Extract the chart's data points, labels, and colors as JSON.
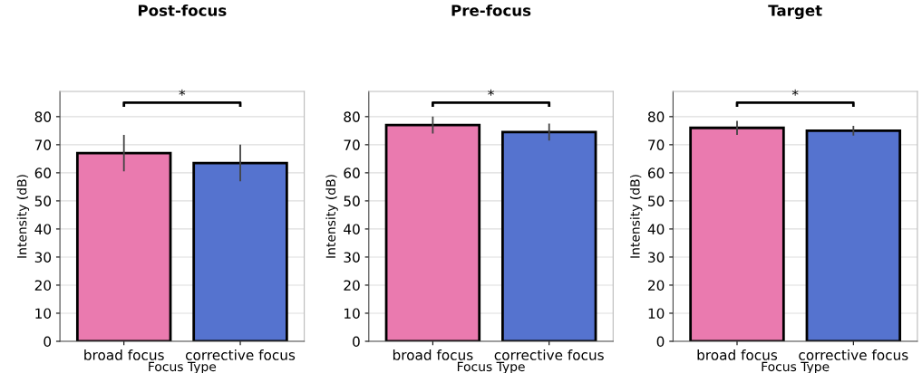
{
  "chart_data": [
    {
      "type": "bar",
      "title": "Post-focus",
      "xlabel": "Focus Type",
      "ylabel": "Intensity (dB)",
      "categories": [
        "broad focus",
        "corrective focus"
      ],
      "values": [
        67,
        63.5
      ],
      "colors": [
        "#ea7aaf",
        "#5573cf"
      ],
      "errors": [
        6.5,
        6.5
      ],
      "ylim": [
        0,
        89
      ],
      "yticks": [
        0,
        10,
        20,
        30,
        40,
        50,
        60,
        70,
        80
      ],
      "grid": "y",
      "annotations": [
        "*"
      ]
    },
    {
      "type": "bar",
      "title": "Pre-focus",
      "xlabel": "Focus Type",
      "ylabel": "Intensity (dB)",
      "categories": [
        "broad focus",
        "corrective focus"
      ],
      "values": [
        77,
        74.5
      ],
      "colors": [
        "#ea7aaf",
        "#5573cf"
      ],
      "errors": [
        3,
        3
      ],
      "ylim": [
        0,
        89
      ],
      "yticks": [
        0,
        10,
        20,
        30,
        40,
        50,
        60,
        70,
        80
      ],
      "grid": "y",
      "annotations": [
        "*"
      ]
    },
    {
      "type": "bar",
      "title": "Target",
      "xlabel": "Focus Type",
      "ylabel": "Intensity (dB)",
      "categories": [
        "broad focus",
        "corrective focus"
      ],
      "values": [
        76,
        75
      ],
      "colors": [
        "#ea7aaf",
        "#5573cf"
      ],
      "errors": [
        2.5,
        1.7
      ],
      "ylim": [
        0,
        89
      ],
      "yticks": [
        0,
        10,
        20,
        30,
        40,
        50,
        60,
        70,
        80
      ],
      "grid": "y",
      "annotations": [
        "*"
      ]
    }
  ]
}
